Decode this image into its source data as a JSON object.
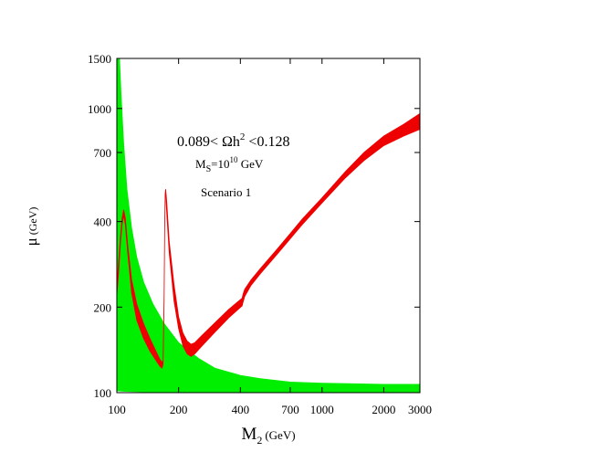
{
  "chart_data": {
    "type": "area",
    "x_scale": "log",
    "y_scale": "log",
    "xlim": [
      100,
      3000
    ],
    "ylim": [
      100,
      1500
    ],
    "xticks": [
      {
        "value": 100,
        "label": "100"
      },
      {
        "value": 200,
        "label": "200"
      },
      {
        "value": 400,
        "label": "400"
      },
      {
        "value": 700,
        "label": "700"
      },
      {
        "value": 1000,
        "label": "1000"
      },
      {
        "value": 2000,
        "label": "2000"
      },
      {
        "value": 3000,
        "label": "3000"
      }
    ],
    "yticks": [
      {
        "value": 100,
        "label": "100"
      },
      {
        "value": 200,
        "label": "200"
      },
      {
        "value": 400,
        "label": "400"
      },
      {
        "value": 700,
        "label": "700"
      },
      {
        "value": 1000,
        "label": "1000"
      },
      {
        "value": 1500,
        "label": "1500"
      }
    ],
    "xlabel": {
      "main": "M",
      "sub": "2",
      "unit": "(GeV)"
    },
    "ylabel": {
      "main": "μ",
      "unit": "(GeV)"
    },
    "annotations": {
      "relic": {
        "pre": "0.089< Ωh",
        "sup": "2",
        "post": " <0.128"
      },
      "ms": {
        "main": "M",
        "sub": "S",
        "eq": "=10",
        "sup": "10",
        "unit": " GeV"
      },
      "scenario": "Scenario 1"
    },
    "colors": {
      "green": "#00ee00",
      "red": "#ee0000"
    },
    "series": [
      {
        "color": "#00ee00",
        "upper": [
          [
            100,
            1500
          ],
          [
            103,
            1500
          ],
          [
            105,
            1100
          ],
          [
            108,
            750
          ],
          [
            112,
            520
          ],
          [
            118,
            380
          ],
          [
            125,
            300
          ],
          [
            135,
            245
          ],
          [
            150,
            205
          ],
          [
            170,
            175
          ],
          [
            200,
            150
          ],
          [
            250,
            132
          ],
          [
            300,
            122
          ],
          [
            400,
            115
          ],
          [
            500,
            112
          ],
          [
            700,
            109
          ],
          [
            1000,
            108
          ],
          [
            2000,
            107
          ],
          [
            3000,
            107
          ]
        ],
        "lower": [
          [
            100,
            100
          ],
          [
            3000,
            100
          ]
        ],
        "lower_tail": [
          [
            100,
            101.5
          ],
          [
            110,
            101
          ],
          [
            140,
            100.6
          ],
          [
            300,
            100.2
          ],
          [
            3000,
            100
          ]
        ]
      },
      {
        "color": "#ee0000",
        "upper": [
          [
            100,
            240
          ],
          [
            102,
            290
          ],
          [
            104,
            350
          ],
          [
            106,
            410
          ],
          [
            108,
            440
          ],
          [
            110,
            410
          ],
          [
            113,
            330
          ],
          [
            118,
            250
          ],
          [
            125,
            205
          ],
          [
            135,
            175
          ],
          [
            145,
            155
          ],
          [
            155,
            140
          ],
          [
            162,
            131
          ],
          [
            166,
            128
          ],
          [
            168,
            130
          ],
          [
            170,
            220
          ],
          [
            171,
            380
          ],
          [
            172,
            500
          ],
          [
            173,
            520
          ],
          [
            175,
            470
          ],
          [
            180,
            340
          ],
          [
            190,
            240
          ],
          [
            200,
            185
          ],
          [
            210,
            162
          ],
          [
            220,
            152
          ],
          [
            230,
            148
          ],
          [
            240,
            150
          ],
          [
            260,
            159
          ],
          [
            300,
            176
          ],
          [
            350,
            196
          ],
          [
            408,
            215
          ],
          [
            412,
            222
          ],
          [
            420,
            231
          ],
          [
            450,
            249
          ],
          [
            500,
            273
          ],
          [
            600,
            318
          ],
          [
            700,
            363
          ],
          [
            800,
            408
          ],
          [
            1000,
            485
          ],
          [
            1300,
            600
          ],
          [
            1600,
            700
          ],
          [
            2000,
            800
          ],
          [
            2500,
            880
          ],
          [
            3000,
            960
          ]
        ],
        "lower": [
          [
            100,
            220
          ],
          [
            102,
            265
          ],
          [
            104,
            330
          ],
          [
            106,
            390
          ],
          [
            108,
            420
          ],
          [
            110,
            390
          ],
          [
            113,
            310
          ],
          [
            118,
            225
          ],
          [
            125,
            180
          ],
          [
            135,
            155
          ],
          [
            145,
            140
          ],
          [
            155,
            130
          ],
          [
            162,
            124
          ],
          [
            166,
            122
          ],
          [
            168,
            126
          ],
          [
            170,
            210
          ],
          [
            171,
            370
          ],
          [
            172,
            490
          ],
          [
            173,
            508
          ],
          [
            174,
            460
          ],
          [
            180,
            310
          ],
          [
            190,
            210
          ],
          [
            200,
            168
          ],
          [
            210,
            146
          ],
          [
            220,
            137
          ],
          [
            230,
            134
          ],
          [
            240,
            137
          ],
          [
            260,
            146
          ],
          [
            300,
            163
          ],
          [
            350,
            183
          ],
          [
            408,
            202
          ],
          [
            412,
            208
          ],
          [
            420,
            218
          ],
          [
            450,
            238
          ],
          [
            500,
            262
          ],
          [
            600,
            305
          ],
          [
            700,
            348
          ],
          [
            800,
            390
          ],
          [
            1000,
            465
          ],
          [
            1300,
            570
          ],
          [
            1600,
            655
          ],
          [
            2000,
            740
          ],
          [
            2500,
            800
          ],
          [
            3000,
            845
          ]
        ]
      }
    ]
  }
}
